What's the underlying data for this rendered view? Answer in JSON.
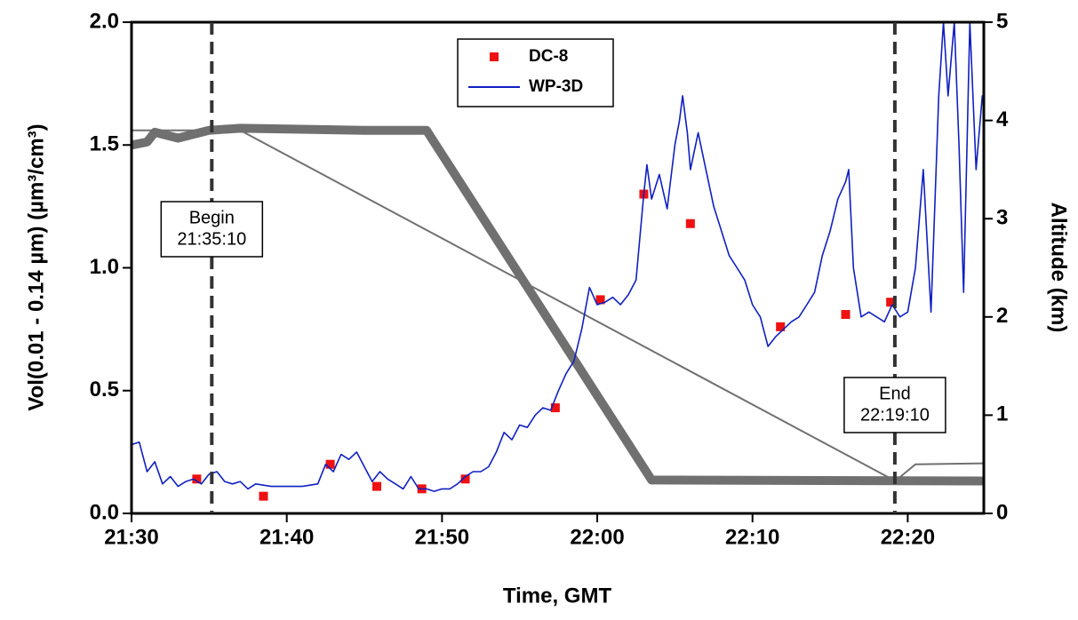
{
  "chart_data": {
    "type": "line",
    "x_label": "Time, GMT",
    "y_label": "Vol(0.01 - 0.14 µm)  (µm³/cm³)",
    "y2_label": "Altitude  (km)",
    "xlim": [
      1290,
      1344.9
    ],
    "xticks": [
      {
        "value": 1290,
        "label": "21:30"
      },
      {
        "value": 1300,
        "label": "21:40"
      },
      {
        "value": 1310,
        "label": "21:50"
      },
      {
        "value": 1320,
        "label": "22:00"
      },
      {
        "value": 1330,
        "label": "22:10"
      },
      {
        "value": 1340,
        "label": "22:20"
      }
    ],
    "ylim": [
      0,
      2
    ],
    "yticks": [
      {
        "value": 0,
        "label": "0.0"
      },
      {
        "value": 0.5,
        "label": "0.5"
      },
      {
        "value": 1,
        "label": "1.0"
      },
      {
        "value": 1.5,
        "label": "1.5"
      },
      {
        "value": 2,
        "label": "2.0"
      }
    ],
    "y2lim": [
      0,
      5
    ],
    "y2ticks": [
      0,
      1,
      2,
      3,
      4,
      5
    ],
    "legend": "top center",
    "series": [
      {
        "name": "DC-8",
        "color": "#ee1111",
        "mark": "square",
        "x": [
          1294.2,
          1298.5,
          1302.8,
          1305.8,
          1308.7,
          1311.5,
          1317.3,
          1320.2,
          1323.0,
          1326.0,
          1331.8,
          1336.0,
          1338.9
        ],
        "values": [
          0.14,
          0.07,
          0.2,
          0.11,
          0.1,
          0.14,
          0.43,
          0.87,
          1.3,
          1.18,
          0.76,
          0.81,
          0.86
        ]
      },
      {
        "name": "WP-3D",
        "color": "#1020c0",
        "mark": "line",
        "x": [
          1290,
          1290.5,
          1291,
          1291.5,
          1292,
          1292.5,
          1293,
          1293.5,
          1294,
          1294.5,
          1295,
          1295.5,
          1296,
          1296.5,
          1297,
          1297.5,
          1298,
          1299,
          1300,
          1301,
          1302,
          1302.5,
          1303,
          1303.5,
          1304,
          1304.5,
          1305,
          1305.5,
          1306,
          1306.5,
          1307,
          1307.5,
          1308,
          1308.5,
          1309,
          1309.5,
          1310,
          1310.5,
          1311,
          1311.5,
          1312,
          1312.5,
          1313,
          1313.5,
          1314,
          1314.5,
          1315,
          1315.5,
          1316,
          1316.5,
          1317,
          1317.5,
          1318,
          1318.5,
          1319,
          1319.5,
          1320,
          1320.5,
          1321,
          1321.5,
          1322,
          1322.5,
          1323,
          1323.2,
          1323.5,
          1324,
          1324.5,
          1325,
          1325.3,
          1325.5,
          1325.8,
          1326,
          1326.5,
          1327,
          1327.5,
          1328,
          1328.5,
          1329,
          1329.5,
          1330,
          1330.5,
          1331,
          1331.5,
          1332,
          1332.5,
          1333,
          1333.5,
          1334,
          1334.5,
          1335,
          1335.5,
          1336,
          1336.2,
          1336.5,
          1337,
          1337.5,
          1338,
          1338.5,
          1339,
          1339.5,
          1340,
          1340.5,
          1341,
          1341.5,
          1342,
          1342.3,
          1342.6,
          1343,
          1343.3,
          1343.6,
          1344,
          1344.4,
          1344.8
        ],
        "values": [
          0.28,
          0.29,
          0.17,
          0.21,
          0.12,
          0.15,
          0.11,
          0.13,
          0.14,
          0.12,
          0.16,
          0.17,
          0.13,
          0.12,
          0.13,
          0.1,
          0.12,
          0.11,
          0.11,
          0.11,
          0.12,
          0.2,
          0.17,
          0.24,
          0.22,
          0.25,
          0.19,
          0.13,
          0.17,
          0.14,
          0.12,
          0.1,
          0.15,
          0.1,
          0.1,
          0.09,
          0.1,
          0.1,
          0.12,
          0.15,
          0.17,
          0.17,
          0.19,
          0.25,
          0.33,
          0.3,
          0.36,
          0.35,
          0.4,
          0.43,
          0.42,
          0.5,
          0.57,
          0.62,
          0.75,
          0.92,
          0.85,
          0.86,
          0.88,
          0.85,
          0.89,
          0.95,
          1.3,
          1.42,
          1.28,
          1.38,
          1.24,
          1.5,
          1.6,
          1.7,
          1.55,
          1.4,
          1.55,
          1.4,
          1.25,
          1.15,
          1.05,
          1.0,
          0.95,
          0.85,
          0.8,
          0.68,
          0.72,
          0.75,
          0.78,
          0.8,
          0.85,
          0.9,
          1.05,
          1.15,
          1.28,
          1.35,
          1.4,
          1.0,
          0.8,
          0.82,
          0.8,
          0.78,
          0.85,
          0.8,
          0.82,
          1.0,
          1.4,
          0.82,
          1.7,
          2.0,
          1.7,
          2.0,
          1.5,
          0.9,
          2.0,
          1.4,
          1.7
        ]
      },
      {
        "color": "#707070",
        "mark": "line",
        "axis": "y2",
        "width": 10,
        "x": [
          1290,
          1291,
          1291.5,
          1293,
          1295,
          1297,
          1305,
          1309,
          1323.5,
          1344.9
        ],
        "values": [
          3.75,
          3.78,
          3.88,
          3.82,
          3.9,
          3.92,
          3.9,
          3.9,
          0.34,
          0.33
        ]
      },
      {
        "color": "#707070",
        "mark": "line",
        "axis": "y2",
        "width": 2,
        "x": [
          1290,
          1297,
          1339.2,
          1340.5,
          1344.9
        ],
        "values": [
          3.9,
          3.9,
          0.33,
          0.5,
          0.51
        ]
      }
    ],
    "annotations": [
      {
        "x": 1295.17,
        "text": [
          "Begin",
          "21:35:10"
        ]
      },
      {
        "x": 1339.17,
        "text": [
          "End",
          "22:19:10"
        ]
      }
    ]
  }
}
